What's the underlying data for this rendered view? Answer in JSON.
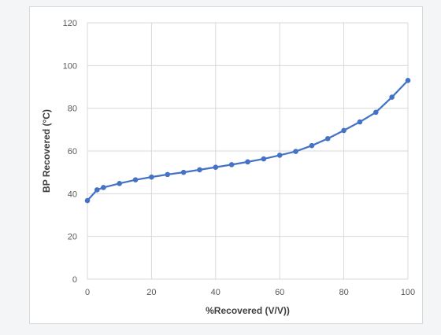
{
  "chart_data": {
    "type": "line",
    "title": "",
    "xlabel": "%Recovered (V/V))",
    "ylabel": "BP Recovered (°C)",
    "xlim": [
      0,
      100
    ],
    "ylim": [
      0,
      120
    ],
    "xticks": [
      0,
      20,
      40,
      60,
      80,
      100
    ],
    "yticks": [
      0,
      20,
      40,
      60,
      80,
      100,
      120
    ],
    "grid": true,
    "legend": "none",
    "series_color": "#4472c4",
    "series": [
      {
        "x": [
          0,
          3,
          5,
          10,
          15,
          20,
          25,
          30,
          35,
          40,
          45,
          50,
          55,
          60,
          65,
          70,
          75,
          80,
          85,
          90,
          95,
          100
        ],
        "y": [
          36.8,
          41.8,
          42.9,
          44.8,
          46.5,
          47.8,
          49.0,
          50.0,
          51.2,
          52.4,
          53.6,
          54.9,
          56.3,
          58.0,
          59.8,
          62.5,
          65.8,
          69.6,
          73.6,
          78.1,
          85.2,
          93.0
        ]
      }
    ]
  }
}
